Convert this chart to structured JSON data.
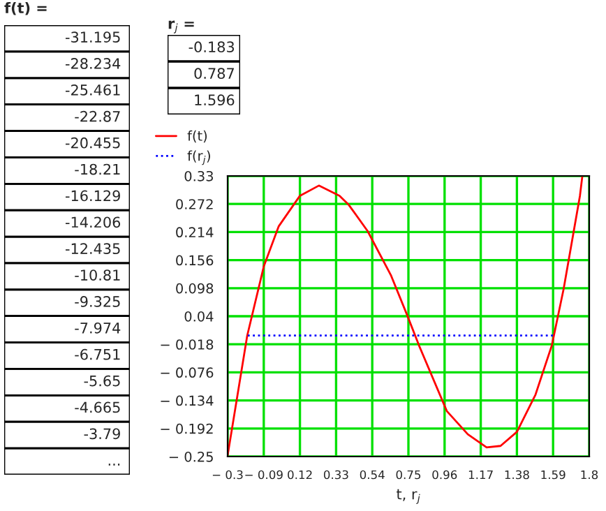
{
  "chart_data": [
    {
      "type": "other",
      "title": "f(t) =",
      "annotations": [
        "-31.195",
        "-28.234",
        "-25.461",
        "-22.87",
        "-20.455",
        "-18.21",
        "-16.129",
        "-14.206",
        "-12.435",
        "-10.81",
        "-9.325",
        "-7.974",
        "-6.751",
        "-5.65",
        "-4.665",
        "-3.79",
        "..."
      ]
    },
    {
      "type": "other",
      "title": "r$_{j}$ =",
      "annotations": [
        "-0.183",
        "0.787",
        "1.596"
      ]
    },
    {
      "type": "line",
      "xlabel": "t, r$_{j}$",
      "grid": true,
      "legend": "upper left",
      "xlim": [
        -0.3,
        1.8
      ],
      "ylim": [
        -0.25,
        0.33
      ],
      "xticks": [
        {
          "value": -0.3,
          "label": "− 0.3"
        },
        {
          "value": -0.09,
          "label": "− 0.09"
        },
        0.12,
        0.33,
        0.54,
        0.75,
        0.96,
        1.17,
        1.38,
        1.59,
        1.8
      ],
      "yticks": [
        0.33,
        0.272,
        0.214,
        0.156,
        0.098,
        0.04,
        {
          "value": -0.018,
          "label": "− 0.018"
        },
        {
          "value": -0.076,
          "label": "− 0.076"
        },
        {
          "value": -0.134,
          "label": "− 0.134"
        },
        {
          "value": -0.192,
          "label": "− 0.192"
        },
        {
          "value": -0.25,
          "label": "− 0.25"
        }
      ],
      "series": [
        {
          "name": "f(t)",
          "color": "#ff0000",
          "line_style": "solid",
          "x": [
            -0.3,
            -0.186,
            -0.089,
            -0.003,
            0.12,
            0.23,
            0.35,
            0.404,
            0.513,
            0.648,
            0.743,
            0.811,
            0.973,
            1.095,
            1.204,
            1.285,
            1.38,
            1.488,
            1.583,
            1.651,
            1.746,
            1.76
          ],
          "values": [
            -0.248,
            0.0,
            0.144,
            0.226,
            0.289,
            0.31,
            0.289,
            0.27,
            0.216,
            0.125,
            0.042,
            -0.02,
            -0.156,
            -0.204,
            -0.231,
            -0.228,
            -0.199,
            -0.122,
            -0.02,
            0.096,
            0.289,
            0.33
          ]
        },
        {
          "name": "f(r$_{j}$)",
          "color": "#0000ff",
          "line_style": "dotted",
          "x": [
            -0.183,
            0.787,
            1.596
          ],
          "values": [
            0,
            0,
            0
          ]
        }
      ]
    }
  ]
}
